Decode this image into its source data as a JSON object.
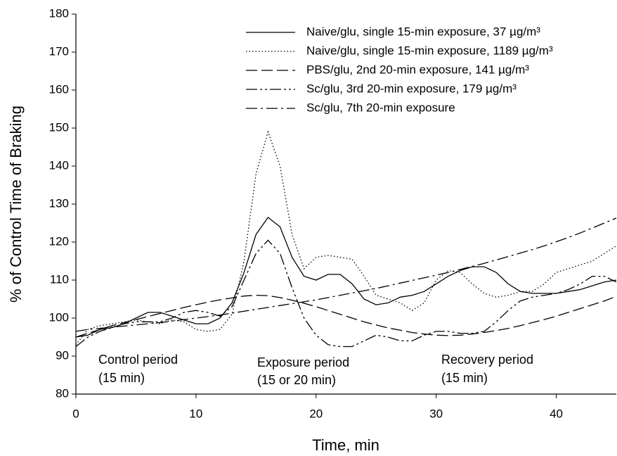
{
  "chart_data": {
    "type": "line",
    "xlabel": "Time, min",
    "ylabel": "% of Control Time of Braking",
    "x": [
      0,
      1,
      2,
      3,
      4,
      5,
      6,
      7,
      8,
      9,
      10,
      11,
      12,
      13,
      14,
      15,
      16,
      17,
      18,
      19,
      20,
      21,
      22,
      23,
      24,
      25,
      26,
      27,
      28,
      29,
      30,
      31,
      32,
      33,
      34,
      35,
      36,
      37,
      38,
      39,
      40,
      41,
      42,
      43,
      44,
      45
    ],
    "xlim": [
      0,
      45
    ],
    "xticks": [
      0,
      10,
      20,
      30,
      40
    ],
    "ylim": [
      80,
      180
    ],
    "yticks": [
      80,
      90,
      100,
      110,
      120,
      130,
      140,
      150,
      160,
      170,
      180
    ],
    "series": [
      {
        "name": "Naive/glu, single 15-min exposure, 37 µg/m³",
        "color": "#000000",
        "dash": "solid",
        "values": [
          95,
          95.5,
          97,
          97.5,
          98.5,
          100,
          101.5,
          101.5,
          100.5,
          99.5,
          98.5,
          98.5,
          100,
          104,
          112,
          122,
          126.5,
          124,
          116,
          111,
          110,
          111.5,
          111.5,
          109,
          105,
          103.5,
          104,
          105.5,
          106,
          107,
          109,
          111,
          112.5,
          113.5,
          113.5,
          112,
          109,
          107,
          106.5,
          106.5,
          106.5,
          107,
          107.5,
          108.5,
          109.5,
          110
        ]
      },
      {
        "name": "Naive/glu, single 15-min exposure, 1189 µg/m³",
        "color": "#000000",
        "dash": "dotted",
        "values": [
          93,
          97,
          98,
          98.5,
          99,
          99.5,
          99,
          98.5,
          99.5,
          99,
          97,
          96.5,
          97,
          101,
          115,
          138,
          149,
          140,
          122,
          113,
          116,
          116.5,
          116,
          115.5,
          111,
          106,
          105,
          104,
          102,
          104,
          110,
          112.5,
          112,
          109,
          106.5,
          105.5,
          106,
          107,
          107,
          109,
          112,
          113,
          114,
          115,
          117,
          119
        ]
      },
      {
        "name": "PBS/glu, 2nd 20-min exposure, 141 µg/m³",
        "color": "#000000",
        "dash": "dashed",
        "values": [
          95,
          96,
          97,
          98,
          98.8,
          99.6,
          100.4,
          101.2,
          102,
          102.8,
          103.5,
          104.2,
          104.8,
          105.3,
          105.8,
          106,
          105.9,
          105.4,
          104.7,
          103.9,
          103,
          102,
          101,
          100,
          99,
          98.2,
          97.4,
          96.8,
          96.2,
          95.8,
          95.5,
          95.4,
          95.5,
          95.8,
          96.2,
          96.7,
          97.3,
          98,
          98.8,
          99.6,
          100.5,
          101.5,
          102.5,
          103.5,
          104.5,
          105.7
        ]
      },
      {
        "name": "Sc/glu, 3rd 20-min exposure, 179 µg/m³",
        "color": "#000000",
        "dash": "dashdotdot",
        "values": [
          92.5,
          95,
          96.5,
          97.5,
          98.5,
          99,
          99,
          99,
          100,
          101.5,
          102,
          101.5,
          100.5,
          103,
          110,
          117,
          120.5,
          117,
          108,
          100,
          95.5,
          93,
          92.5,
          92.5,
          94,
          95.5,
          95,
          94,
          94,
          95.5,
          96.5,
          96.5,
          96,
          96,
          96.5,
          99,
          102,
          104.5,
          105.5,
          106,
          106.5,
          107.5,
          109,
          111,
          111,
          109.5
        ]
      },
      {
        "name": "Sc/glu, 7th 20-min exposure",
        "color": "#000000",
        "dash": "dashdot",
        "values": [
          96.5,
          97,
          97.3,
          97.6,
          97.9,
          98.2,
          98.5,
          98.8,
          99.2,
          99.6,
          100,
          100.4,
          100.8,
          101.3,
          101.8,
          102.3,
          102.8,
          103.3,
          103.8,
          104.3,
          104.8,
          105.4,
          106,
          106.6,
          107.2,
          107.8,
          108.5,
          109.2,
          109.9,
          110.6,
          111.3,
          112,
          112.8,
          113.6,
          114.4,
          115.3,
          116.2,
          117.1,
          118,
          119,
          120.1,
          121.2,
          122.4,
          123.7,
          125,
          126.3
        ]
      }
    ],
    "annotations": [
      "Control period",
      "(15 min)",
      "Exposure period",
      "(15 or 20 min)",
      "Recovery period",
      "(15 min)"
    ],
    "legend": "upper right",
    "grid": false
  }
}
